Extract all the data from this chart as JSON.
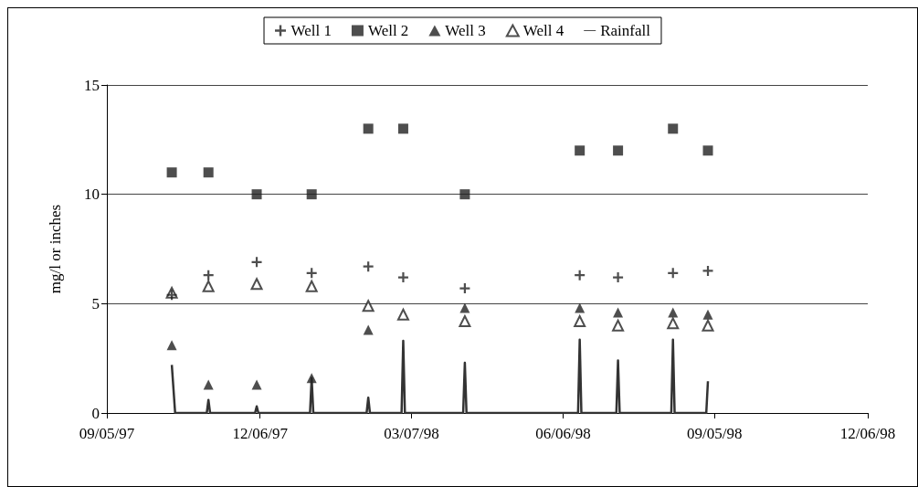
{
  "chart_data": {
    "type": "scatter",
    "ylabel": "mg/l or inches",
    "xlim": [
      "1997-09-05",
      "1998-12-06"
    ],
    "xticks": [
      {
        "value": "1997-09-05",
        "label": "09/05/97"
      },
      {
        "value": "1997-12-06",
        "label": "12/06/97"
      },
      {
        "value": "1998-03-07",
        "label": "03/07/98"
      },
      {
        "value": "1998-06-06",
        "label": "06/06/98"
      },
      {
        "value": "1998-09-05",
        "label": "09/05/98"
      },
      {
        "value": "1998-12-06",
        "label": "12/06/98"
      }
    ],
    "ylim": [
      0,
      15
    ],
    "yticks": [
      0,
      5,
      10,
      15
    ],
    "grid": "y",
    "legend": "top",
    "x": [
      "1997-10-14",
      "1997-11-05",
      "1997-12-04",
      "1998-01-06",
      "1998-02-09",
      "1998-03-02",
      "1998-04-08",
      "1998-06-16",
      "1998-07-09",
      "1998-08-11",
      "1998-09-01"
    ],
    "series": [
      {
        "name": "Well 1",
        "color": "#222222",
        "marker": "cross",
        "values": [
          5.4,
          6.3,
          6.9,
          6.4,
          6.7,
          6.2,
          5.7,
          6.3,
          6.2,
          6.4,
          6.5
        ]
      },
      {
        "name": "Well 2",
        "color": "#222222",
        "marker": "square",
        "values": [
          11,
          11,
          10,
          10,
          13,
          13,
          10,
          12,
          12,
          13,
          12
        ]
      },
      {
        "name": "Well 3",
        "color": "#222222",
        "marker": "triangle",
        "values": [
          3.1,
          1.3,
          1.3,
          1.6,
          3.8,
          null,
          4.8,
          4.8,
          4.6,
          4.6,
          4.5
        ]
      },
      {
        "name": "Well 4",
        "color": "#222222",
        "marker": "triangle-open",
        "values": [
          5.5,
          5.8,
          5.9,
          5.8,
          4.9,
          4.5,
          4.2,
          4.2,
          4.0,
          4.1,
          4.0
        ]
      },
      {
        "name": "Rainfall",
        "type": "line",
        "color": "#333333",
        "marker": "none",
        "line_style": "solid",
        "x": [
          "1997-10-14",
          "1997-10-16",
          "1997-11-04",
          "1997-11-05",
          "1997-11-06",
          "1997-12-03",
          "1997-12-04",
          "1997-12-05",
          "1998-01-05",
          "1998-01-06",
          "1998-01-07",
          "1998-02-08",
          "1998-02-09",
          "1998-02-10",
          "1998-03-01",
          "1998-03-02",
          "1998-03-03",
          "1998-04-07",
          "1998-04-08",
          "1998-04-09",
          "1998-06-15",
          "1998-06-16",
          "1998-06-17",
          "1998-07-08",
          "1998-07-09",
          "1998-07-10",
          "1998-08-10",
          "1998-08-11",
          "1998-08-12",
          "1998-08-31",
          "1998-09-01"
        ],
        "values": [
          2.2,
          0,
          0,
          0.6,
          0,
          0,
          0.3,
          0,
          0,
          1.6,
          0,
          0,
          0.7,
          0,
          0,
          3.3,
          0,
          0,
          2.3,
          0,
          0,
          3.35,
          0,
          0,
          2.4,
          0,
          0,
          3.35,
          0,
          0,
          1.45
        ]
      }
    ]
  }
}
